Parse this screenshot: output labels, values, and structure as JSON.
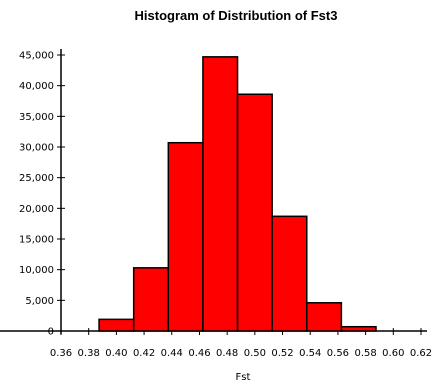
{
  "chart_data": {
    "type": "bar",
    "title": "Histogram of Distribution of Fst3",
    "xlabel": "Fst",
    "ylabel": "",
    "x_ticks": [
      "0.36",
      "0.38",
      "0.40",
      "0.42",
      "0.44",
      "0.46",
      "0.48",
      "0.50",
      "0.52",
      "0.54",
      "0.56",
      "0.58",
      "0.60",
      "0.62"
    ],
    "xlim": [
      0.36,
      0.62
    ],
    "y_ticks": [
      "0",
      "5,000",
      "10,000",
      "15,000",
      "20,000",
      "25,000",
      "30,000",
      "35,000",
      "40,000",
      "45,000"
    ],
    "ylim": [
      0,
      45000
    ],
    "bar_color": "#ff0000",
    "grid": false,
    "bins": [
      {
        "x0": 0.3875,
        "x1": 0.4125,
        "value": 1900
      },
      {
        "x0": 0.4125,
        "x1": 0.4375,
        "value": 10300
      },
      {
        "x0": 0.4375,
        "x1": 0.4625,
        "value": 30700
      },
      {
        "x0": 0.4625,
        "x1": 0.4875,
        "value": 44700
      },
      {
        "x0": 0.4875,
        "x1": 0.5125,
        "value": 38600
      },
      {
        "x0": 0.5125,
        "x1": 0.5375,
        "value": 18700
      },
      {
        "x0": 0.5375,
        "x1": 0.5625,
        "value": 4600
      },
      {
        "x0": 0.5625,
        "x1": 0.5875,
        "value": 700
      }
    ]
  }
}
